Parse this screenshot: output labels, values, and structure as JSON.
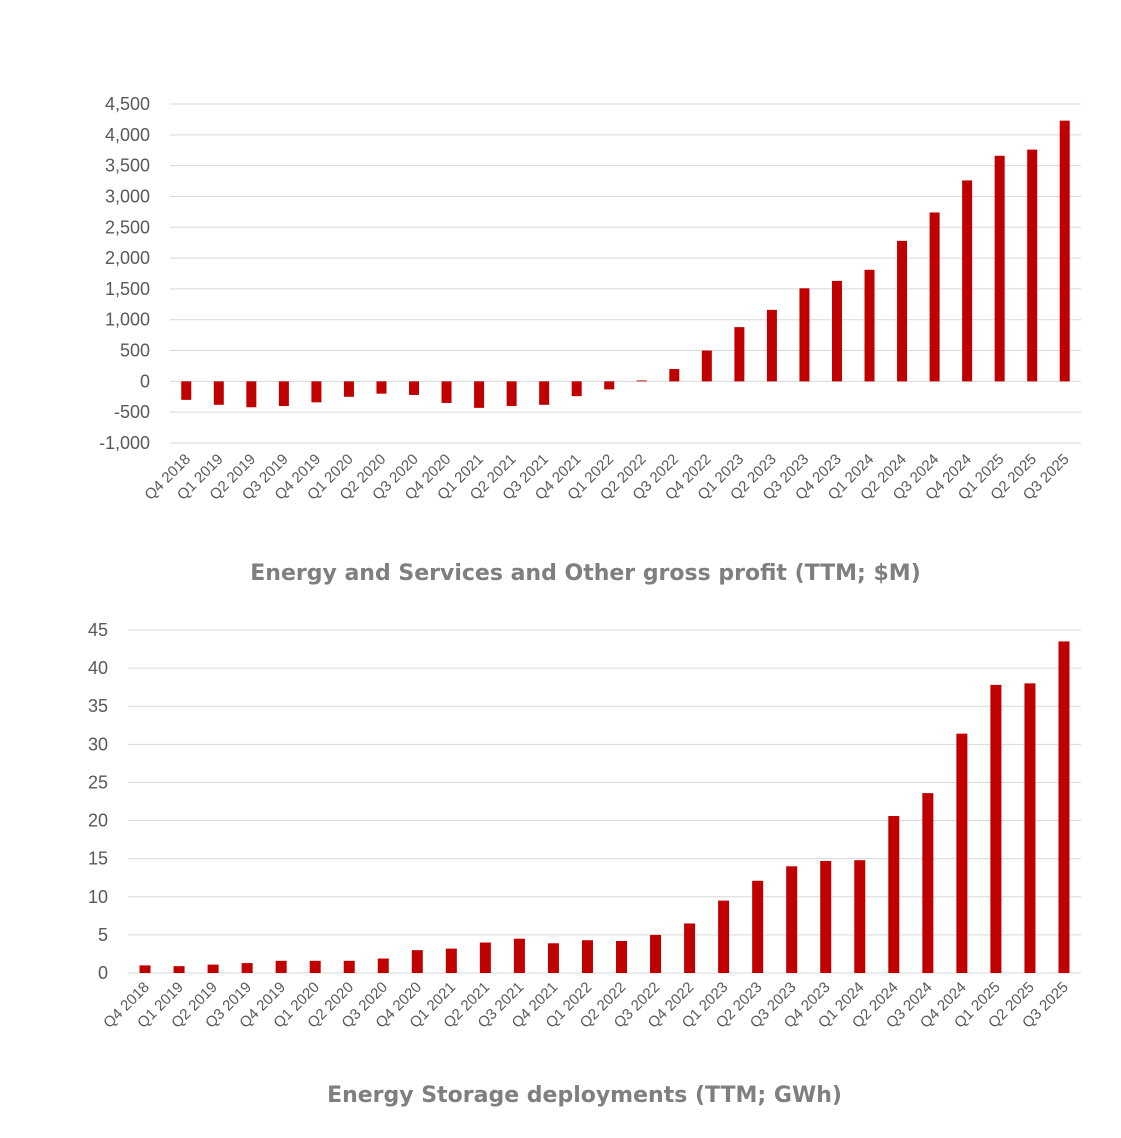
{
  "chart_data": [
    {
      "type": "bar",
      "title": "Energy and Services and Other gross profit (TTM; $M)",
      "xlabel": "",
      "ylabel": "",
      "ylim": [
        -1000,
        4500
      ],
      "ytick_step": 500,
      "ytick_labels": [
        "-1,000",
        "-500",
        "0",
        "500",
        "1,000",
        "1,500",
        "2,000",
        "2,500",
        "3,000",
        "3,500",
        "4,000",
        "4,500"
      ],
      "color": "#C00000",
      "grid": true,
      "categories": [
        "Q4 2018",
        "Q1 2019",
        "Q2 2019",
        "Q3 2019",
        "Q4 2019",
        "Q1 2020",
        "Q2 2020",
        "Q3 2020",
        "Q4 2020",
        "Q1 2021",
        "Q2 2021",
        "Q3 2021",
        "Q4 2021",
        "Q1 2022",
        "Q2 2022",
        "Q3 2022",
        "Q4 2022",
        "Q1 2023",
        "Q2 2023",
        "Q3 2023",
        "Q4 2023",
        "Q1 2024",
        "Q2 2024",
        "Q3 2024",
        "Q4 2024",
        "Q1 2025",
        "Q2 2025",
        "Q3 2025"
      ],
      "values": [
        -300,
        -380,
        -420,
        -400,
        -340,
        -250,
        -200,
        -220,
        -350,
        -430,
        -400,
        -380,
        -240,
        -130,
        15,
        200,
        500,
        880,
        1160,
        1510,
        1630,
        1810,
        2280,
        2740,
        3260,
        3660,
        3760,
        4230
      ]
    },
    {
      "type": "bar",
      "title": "Energy Storage deployments (TTM; GWh)",
      "xlabel": "",
      "ylabel": "",
      "ylim": [
        0,
        45
      ],
      "ytick_step": 5,
      "ytick_labels": [
        "0",
        "5",
        "10",
        "15",
        "20",
        "25",
        "30",
        "35",
        "40",
        "45"
      ],
      "color": "#C00000",
      "grid": true,
      "categories": [
        "Q4 2018",
        "Q1 2019",
        "Q2 2019",
        "Q3 2019",
        "Q4 2019",
        "Q1 2020",
        "Q2 2020",
        "Q3 2020",
        "Q4 2020",
        "Q1 2021",
        "Q2 2021",
        "Q3 2021",
        "Q4 2021",
        "Q1 2022",
        "Q2 2022",
        "Q3 2022",
        "Q4 2022",
        "Q1 2023",
        "Q2 2023",
        "Q3 2023",
        "Q4 2023",
        "Q1 2024",
        "Q2 2024",
        "Q3 2024",
        "Q4 2024",
        "Q1 2025",
        "Q2 2025",
        "Q3 2025"
      ],
      "values": [
        1.0,
        0.9,
        1.1,
        1.3,
        1.6,
        1.6,
        1.6,
        1.9,
        3.0,
        3.2,
        4.0,
        4.5,
        3.9,
        4.3,
        4.2,
        5.0,
        6.5,
        9.5,
        12.1,
        14.0,
        14.7,
        14.8,
        20.6,
        23.6,
        31.4,
        37.8,
        38.0,
        43.5
      ]
    }
  ]
}
